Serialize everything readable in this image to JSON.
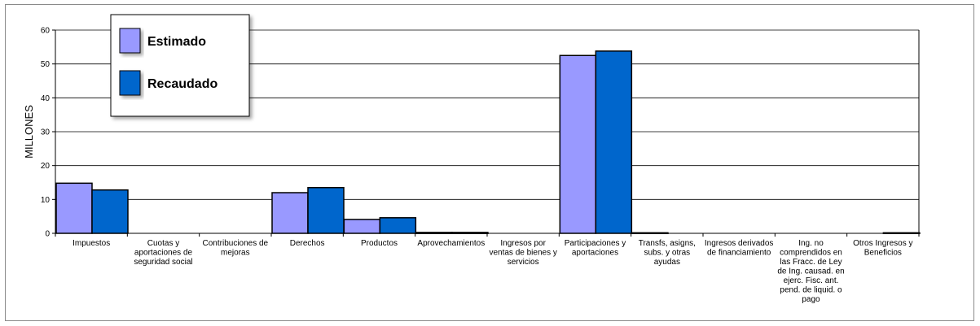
{
  "chart_data": {
    "type": "bar",
    "ylabel": "MILLONES",
    "ylim": [
      0,
      60
    ],
    "yticks": [
      0,
      10,
      20,
      30,
      40,
      50,
      60
    ],
    "grid": true,
    "legend_position": "top-left",
    "categories": [
      "Impuestos",
      "Cuotas y aportaciones de seguridad social",
      "Contribuciones de mejoras",
      "Derechos",
      "Productos",
      "Aprovechamientos",
      "Ingresos por ventas de bienes y servicios",
      "Participaciones y aportaciones",
      "Transfs, asigns, subs. y otras ayudas",
      "Ingresos derivados de financiamiento",
      "Ing. no comprendidos en las Fracc. de Ley de Ing. causad. en ejerc. Fisc. ant. pend. de liquid. o pago",
      "Otros Ingresos y Beneficios"
    ],
    "category_lines": [
      [
        "Impuestos"
      ],
      [
        "Cuotas y",
        "aportaciones de",
        "seguridad social"
      ],
      [
        "Contribuciones de",
        "mejoras"
      ],
      [
        "Derechos"
      ],
      [
        "Productos"
      ],
      [
        "Aprovechamientos"
      ],
      [
        "Ingresos por",
        "ventas de bienes y",
        "servicios"
      ],
      [
        "Participaciones y",
        "aportaciones"
      ],
      [
        "Transfs, asigns,",
        "subs. y otras",
        "ayudas"
      ],
      [
        "Ingresos derivados",
        "de financiamiento"
      ],
      [
        "Ing. no",
        "comprendidos en",
        "las Fracc. de Ley",
        "de Ing. causad. en",
        "ejerc. Fisc. ant.",
        "pend. de liquid. o",
        "pago"
      ],
      [
        "Otros Ingresos y",
        "Beneficios"
      ]
    ],
    "series": [
      {
        "name": "Estimado",
        "color": "#9999ff",
        "values": [
          14.8,
          0,
          0,
          12.0,
          4.1,
          0.2,
          0,
          52.5,
          0.1,
          0,
          0,
          0
        ]
      },
      {
        "name": "Recaudado",
        "color": "#0066cc",
        "values": [
          12.8,
          0,
          0,
          13.5,
          4.6,
          0.2,
          0,
          53.8,
          0,
          0,
          0,
          0.1
        ]
      }
    ]
  }
}
